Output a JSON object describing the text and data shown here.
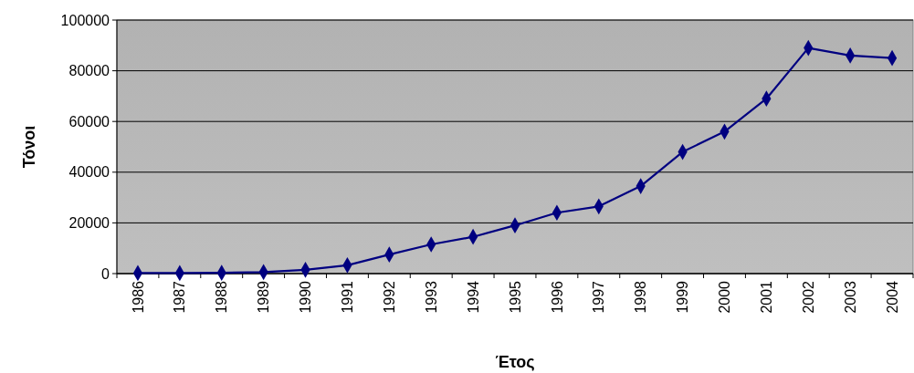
{
  "chart_data": {
    "type": "line",
    "xlabel": "Έτος",
    "ylabel": "Τόνοι",
    "categories": [
      "1986",
      "1987",
      "1988",
      "1989",
      "1990",
      "1991",
      "1992",
      "1993",
      "1994",
      "1995",
      "1996",
      "1997",
      "1998",
      "1999",
      "2000",
      "2001",
      "2002",
      "2003",
      "2004"
    ],
    "series": [
      {
        "color": "#000080",
        "values": [
          200,
          200,
          300,
          600,
          1500,
          3300,
          7500,
          11500,
          14500,
          19000,
          24000,
          26500,
          34500,
          48000,
          56000,
          69000,
          89000,
          86000,
          85000
        ]
      }
    ],
    "ylim": [
      0,
      100000
    ],
    "yticks": [
      0,
      20000,
      40000,
      60000,
      80000,
      100000
    ],
    "grid": "y",
    "marker": "diamond",
    "line_style": "solid"
  }
}
